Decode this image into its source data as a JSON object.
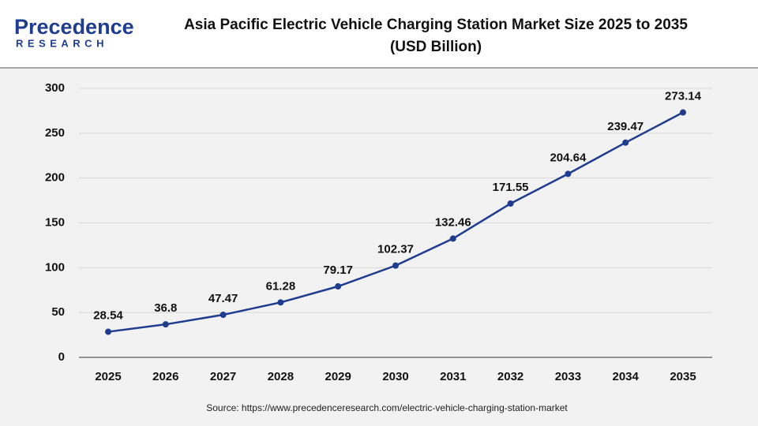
{
  "logo": {
    "name": "Precedence",
    "sub": "RESEARCH"
  },
  "chart_data": {
    "type": "line",
    "title": "Asia Pacific Electric Vehicle Charging Station Market Size 2025 to 2035",
    "subtitle": "(USD Billion)",
    "categories": [
      "2025",
      "2026",
      "2027",
      "2028",
      "2029",
      "2030",
      "2031",
      "2032",
      "2033",
      "2034",
      "2035"
    ],
    "series": [
      {
        "name": "Market Size",
        "color": "#1f3c8f",
        "values": [
          28.54,
          36.8,
          47.47,
          61.28,
          79.17,
          102.37,
          132.46,
          171.55,
          204.64,
          239.47,
          273.14
        ]
      }
    ],
    "ylim": [
      0,
      300
    ],
    "yticks": [
      0,
      50,
      100,
      150,
      200,
      250,
      300
    ],
    "grid": true,
    "source": "Source: https://www.precedenceresearch.com/electric-vehicle-charging-station-market"
  }
}
